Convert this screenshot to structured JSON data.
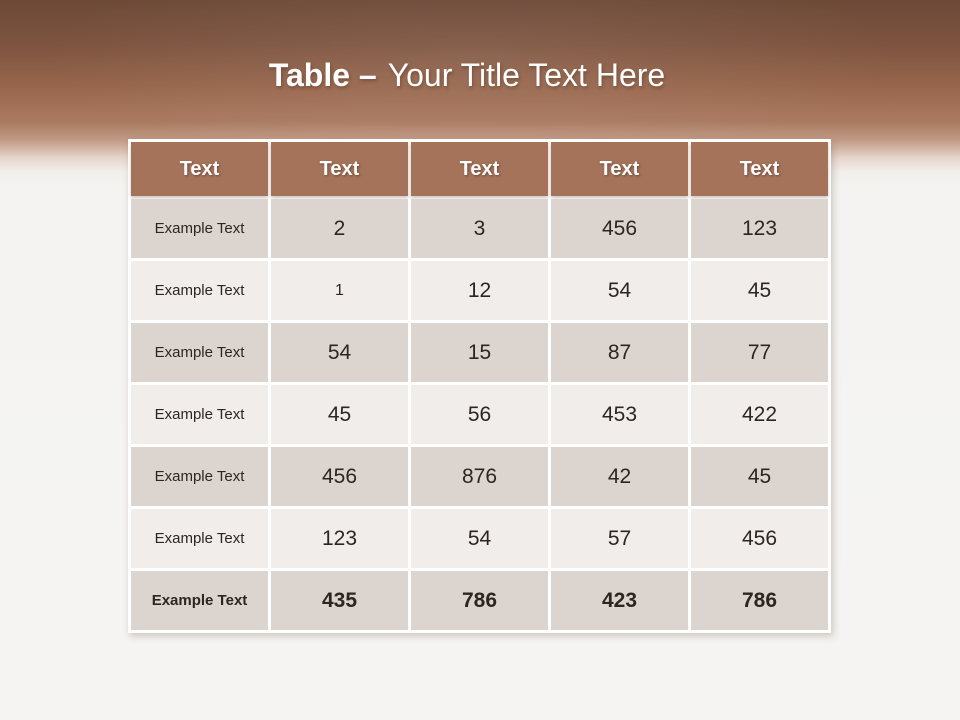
{
  "title": {
    "emphasis": "Table –",
    "rest": "Your Title Text Here"
  },
  "chart_data": {
    "type": "table",
    "title": "Table – Your Title Text Here",
    "columns": [
      "Text",
      "Text",
      "Text",
      "Text",
      "Text"
    ],
    "rows": [
      {
        "label": "Example Text",
        "values": [
          "2",
          "3",
          "456",
          "123"
        ]
      },
      {
        "label": "Example Text",
        "values": [
          "1",
          "12",
          "54",
          "45"
        ]
      },
      {
        "label": "Example Text",
        "values": [
          "54",
          "15",
          "87",
          "77"
        ]
      },
      {
        "label": "Example Text",
        "values": [
          "45",
          "56",
          "453",
          "422"
        ]
      },
      {
        "label": "Example Text",
        "values": [
          "456",
          "876",
          "42",
          "45"
        ]
      },
      {
        "label": "Example Text",
        "values": [
          "123",
          "54",
          "57",
          "456"
        ]
      },
      {
        "label": "Example Text",
        "values": [
          "435",
          "786",
          "423",
          "786"
        ]
      }
    ]
  },
  "colors": {
    "banner_top": "#6D4A38",
    "banner_brown": "#A4735A",
    "header_bg": "#A4735A",
    "header_text": "#FFFFFF",
    "row_dark_bg": "#DCD4CE",
    "row_light_bg": "#F1EDEA",
    "cell_text": "#2B2622",
    "table_border": "#FFFFFF",
    "page_bg": "#F5F4F2"
  }
}
